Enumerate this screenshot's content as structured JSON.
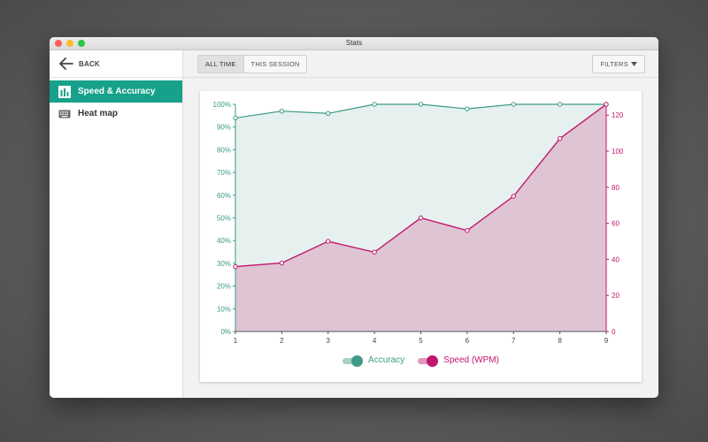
{
  "window": {
    "title": "Stats"
  },
  "sidebar": {
    "back_label": "BACK",
    "items": [
      {
        "label": "Speed & Accuracy",
        "icon": "bar-chart-icon",
        "active": true
      },
      {
        "label": "Heat map",
        "icon": "keyboard-icon",
        "active": false
      }
    ]
  },
  "toolbar": {
    "segments": [
      {
        "label": "ALL TIME",
        "selected": true
      },
      {
        "label": "THIS SESSION",
        "selected": false
      }
    ],
    "filters_label": "FILTERS"
  },
  "colors": {
    "accent": "#17a08a",
    "accuracy": "#3d9a86",
    "speed": "#c0176e",
    "accuracy_fill": "#e6f1ef",
    "speed_fill": "#dfc4d3"
  },
  "chart_data": {
    "type": "area",
    "x": [
      1,
      2,
      3,
      4,
      5,
      6,
      7,
      8,
      9
    ],
    "series": [
      {
        "name": "Accuracy",
        "axis": "left",
        "values": [
          94,
          97,
          96,
          100,
          100,
          98,
          100,
          100,
          100
        ]
      },
      {
        "name": "Speed (WPM)",
        "axis": "right",
        "values": [
          36,
          38,
          50,
          44,
          63,
          56,
          75,
          107,
          126
        ]
      }
    ],
    "y_left": {
      "min": 0,
      "max": 100,
      "ticks": [
        "0%",
        "10%",
        "20%",
        "30%",
        "40%",
        "50%",
        "60%",
        "70%",
        "80%",
        "90%",
        "100%"
      ]
    },
    "y_right": {
      "min": 0,
      "max": 126,
      "ticks": [
        "0",
        "20",
        "40",
        "60",
        "80",
        "100",
        "120"
      ]
    },
    "x_ticks": [
      "1",
      "2",
      "3",
      "4",
      "5",
      "6",
      "7",
      "8",
      "9"
    ],
    "legend_position": "bottom"
  }
}
